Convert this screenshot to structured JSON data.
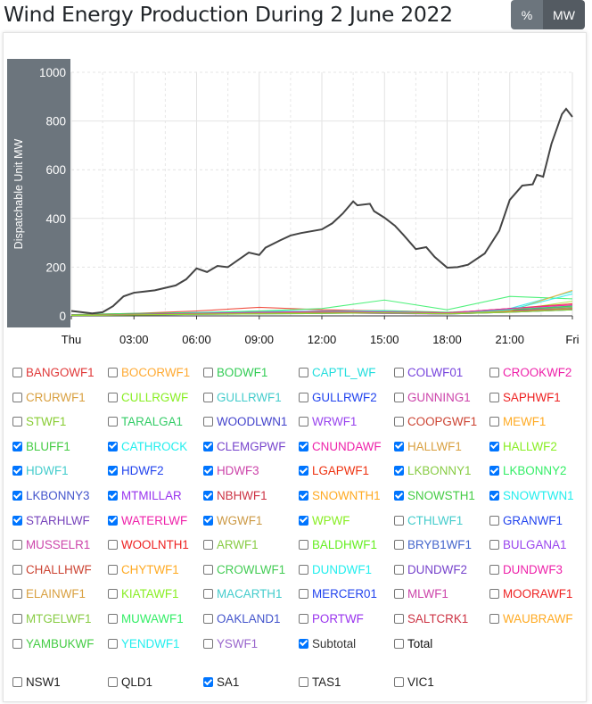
{
  "header": {
    "title": "Wind Energy Production During 2 June 2022",
    "buttons": [
      "%",
      "MW"
    ],
    "active": "MW"
  },
  "chart_data": {
    "type": "line",
    "ylabel": "Dispatchable Unit MW",
    "ylim": [
      0,
      1000
    ],
    "yticks": [
      "0",
      "200",
      "400",
      "600",
      "800",
      "1000"
    ],
    "xlabels": [
      "Thu",
      "03:00",
      "06:00",
      "09:00",
      "12:00",
      "15:00",
      "18:00",
      "21:00",
      "Fri"
    ],
    "xunit": "hours",
    "xlim": [
      0,
      24
    ],
    "grid": true,
    "subtotal": {
      "name": "Subtotal",
      "color": "#444444",
      "x": [
        0,
        0.5,
        1,
        1.5,
        2,
        2.5,
        3,
        3.5,
        4,
        4.5,
        5,
        5.5,
        6,
        6.5,
        7,
        7.5,
        8,
        8.5,
        9,
        9.3,
        10,
        10.5,
        11,
        12,
        12.5,
        13,
        13.5,
        13.7,
        14.3,
        14.5,
        15,
        15.5,
        15.9,
        16.5,
        17,
        17.4,
        18,
        18.5,
        19,
        19.8,
        20.5,
        21,
        21.6,
        22.1,
        22.3,
        22.6,
        23,
        23.5,
        23.7,
        24
      ],
      "y": [
        20,
        15,
        10,
        15,
        40,
        80,
        95,
        100,
        105,
        115,
        125,
        150,
        195,
        180,
        205,
        200,
        230,
        260,
        250,
        280,
        310,
        330,
        340,
        355,
        380,
        420,
        470,
        454,
        460,
        430,
        403,
        370,
        333,
        274,
        282,
        242,
        198,
        200,
        210,
        256,
        350,
        476,
        535,
        540,
        579,
        571,
        707,
        828,
        850,
        817
      ]
    },
    "units_x": [
      0,
      3,
      6,
      9,
      12,
      15,
      18,
      21,
      24
    ],
    "units": [
      {
        "name": "BLUFF1",
        "color": "#33cc66",
        "y": [
          5,
          8,
          10,
          12,
          20,
          22,
          15,
          25,
          40
        ]
      },
      {
        "name": "CATHROCK",
        "color": "#22e5e5",
        "y": [
          3,
          10,
          14,
          20,
          18,
          15,
          10,
          30,
          100
        ]
      },
      {
        "name": "CLEMGPWF",
        "color": "#7744dd",
        "y": [
          2,
          6,
          8,
          10,
          12,
          14,
          10,
          25,
          35
        ]
      },
      {
        "name": "CNUNDAWF",
        "color": "#ee22aa",
        "y": [
          4,
          8,
          10,
          12,
          15,
          14,
          12,
          30,
          45
        ]
      },
      {
        "name": "HALLWF1",
        "color": "#ddaa44",
        "y": [
          2,
          5,
          8,
          10,
          14,
          18,
          10,
          20,
          30
        ]
      },
      {
        "name": "HALLWF2",
        "color": "#99ee33",
        "y": [
          3,
          6,
          10,
          12,
          14,
          12,
          8,
          22,
          60
        ]
      },
      {
        "name": "HDWF1",
        "color": "#33ccdd",
        "y": [
          4,
          8,
          12,
          14,
          16,
          15,
          10,
          25,
          40
        ]
      },
      {
        "name": "HDWF2",
        "color": "#2244ee",
        "y": [
          3,
          6,
          8,
          12,
          14,
          12,
          8,
          20,
          30
        ]
      },
      {
        "name": "HDWF3",
        "color": "#cc44aa",
        "y": [
          2,
          5,
          8,
          10,
          12,
          10,
          8,
          18,
          28
        ]
      },
      {
        "name": "LGAPWF1",
        "color": "#ee3322",
        "y": [
          5,
          10,
          20,
          35,
          25,
          20,
          12,
          30,
          50
        ]
      },
      {
        "name": "LKBONNY1",
        "color": "#88cc44",
        "y": [
          2,
          5,
          8,
          12,
          14,
          16,
          10,
          20,
          35
        ]
      },
      {
        "name": "LKBONNY2",
        "color": "#33ee66",
        "y": [
          5,
          10,
          12,
          20,
          30,
          65,
          25,
          80,
          70
        ]
      },
      {
        "name": "LKBONNY3",
        "color": "#4455cc",
        "y": [
          2,
          4,
          6,
          8,
          10,
          12,
          8,
          15,
          25
        ]
      },
      {
        "name": "MTMILLAR",
        "color": "#9933ee",
        "y": [
          2,
          4,
          6,
          10,
          12,
          10,
          8,
          22,
          30
        ]
      },
      {
        "name": "NBHWF1",
        "color": "#cc3344",
        "y": [
          3,
          6,
          10,
          14,
          16,
          14,
          10,
          20,
          30
        ]
      },
      {
        "name": "SNOWNTH1",
        "color": "#ffaa22",
        "y": [
          2,
          5,
          8,
          12,
          18,
          20,
          10,
          20,
          105
        ]
      },
      {
        "name": "SNOWSTH1",
        "color": "#44cc44",
        "y": [
          3,
          6,
          10,
          14,
          18,
          16,
          12,
          25,
          40
        ]
      },
      {
        "name": "SNOWTWN1",
        "color": "#22eeee",
        "y": [
          2,
          5,
          10,
          15,
          20,
          20,
          10,
          25,
          90
        ]
      },
      {
        "name": "STARHLWF",
        "color": "#7744bb",
        "y": [
          2,
          5,
          8,
          10,
          12,
          12,
          8,
          15,
          25
        ]
      },
      {
        "name": "WATERLWF",
        "color": "#ee22aa",
        "y": [
          3,
          6,
          10,
          15,
          18,
          16,
          12,
          30,
          45
        ]
      },
      {
        "name": "WGWF1",
        "color": "#cc9944",
        "y": [
          2,
          4,
          8,
          10,
          14,
          12,
          10,
          18,
          30
        ]
      },
      {
        "name": "WPWF",
        "color": "#88ee22",
        "y": [
          2,
          4,
          6,
          8,
          10,
          12,
          8,
          15,
          25
        ]
      }
    ]
  },
  "legend": {
    "units": [
      {
        "label": "BANGOWF1",
        "color": "#e03838",
        "checked": false
      },
      {
        "label": "BOCORWF1",
        "color": "#ffaa33",
        "checked": false
      },
      {
        "label": "BODWF1",
        "color": "#33cc55",
        "checked": false
      },
      {
        "label": "CAPTL_WF",
        "color": "#22dddd",
        "checked": false
      },
      {
        "label": "COLWF01",
        "color": "#7744dd",
        "checked": false
      },
      {
        "label": "CROOKWF2",
        "color": "#ee22aa",
        "checked": false
      },
      {
        "label": "CRURWF1",
        "color": "#d9a040",
        "checked": false
      },
      {
        "label": "CULLRGWF",
        "color": "#88ee22",
        "checked": false
      },
      {
        "label": "GULLRWF1",
        "color": "#44cccc",
        "checked": false
      },
      {
        "label": "GULLRWF2",
        "color": "#2244ee",
        "checked": false
      },
      {
        "label": "GUNNING1",
        "color": "#cc44aa",
        "checked": false
      },
      {
        "label": "SAPHWF1",
        "color": "#ee2222",
        "checked": false
      },
      {
        "label": "STWF1",
        "color": "#88cc33",
        "checked": false
      },
      {
        "label": "TARALGA1",
        "color": "#33cc66",
        "checked": false
      },
      {
        "label": "WOODLWN1",
        "color": "#4444cc",
        "checked": false
      },
      {
        "label": "WRWF1",
        "color": "#9944ee",
        "checked": false
      },
      {
        "label": "COOPGWF1",
        "color": "#cc4433",
        "checked": false
      },
      {
        "label": "MEWF1",
        "color": "#ffaa22",
        "checked": false
      },
      {
        "label": "BLUFF1",
        "color": "#44cc44",
        "checked": true
      },
      {
        "label": "CATHROCK",
        "color": "#22eeee",
        "checked": true
      },
      {
        "label": "CLEMGPWF",
        "color": "#7744cc",
        "checked": true
      },
      {
        "label": "CNUNDAWF",
        "color": "#ee22aa",
        "checked": true
      },
      {
        "label": "HALLWF1",
        "color": "#d9a040",
        "checked": true
      },
      {
        "label": "HALLWF2",
        "color": "#88ee22",
        "checked": true
      },
      {
        "label": "HDWF1",
        "color": "#44cccc",
        "checked": true
      },
      {
        "label": "HDWF2",
        "color": "#2244ee",
        "checked": true
      },
      {
        "label": "HDWF3",
        "color": "#cc44aa",
        "checked": true
      },
      {
        "label": "LGAPWF1",
        "color": "#ee3311",
        "checked": true
      },
      {
        "label": "LKBONNY1",
        "color": "#88cc44",
        "checked": true
      },
      {
        "label": "LKBONNY2",
        "color": "#33ee66",
        "checked": true
      },
      {
        "label": "LKBONNY3",
        "color": "#4455cc",
        "checked": true
      },
      {
        "label": "MTMILLAR",
        "color": "#9933ee",
        "checked": true
      },
      {
        "label": "NBHWF1",
        "color": "#cc3344",
        "checked": true
      },
      {
        "label": "SNOWNTH1",
        "color": "#ffaa22",
        "checked": true
      },
      {
        "label": "SNOWSTH1",
        "color": "#44cc44",
        "checked": true
      },
      {
        "label": "SNOWTWN1",
        "color": "#22eeee",
        "checked": true
      },
      {
        "label": "STARHLWF",
        "color": "#7744bb",
        "checked": true
      },
      {
        "label": "WATERLWF",
        "color": "#ee22aa",
        "checked": true
      },
      {
        "label": "WGWF1",
        "color": "#cc9944",
        "checked": true
      },
      {
        "label": "WPWF",
        "color": "#88ee22",
        "checked": true
      },
      {
        "label": "CTHLWF1",
        "color": "#44cccc",
        "checked": false
      },
      {
        "label": "GRANWF1",
        "color": "#2244ee",
        "checked": false
      },
      {
        "label": "MUSSELR1",
        "color": "#cc44aa",
        "checked": false
      },
      {
        "label": "WOOLNTH1",
        "color": "#ee2222",
        "checked": false
      },
      {
        "label": "ARWF1",
        "color": "#88cc44",
        "checked": false
      },
      {
        "label": "BALDHWF1",
        "color": "#66ee22",
        "checked": false
      },
      {
        "label": "BRYB1WF1",
        "color": "#4466cc",
        "checked": false
      },
      {
        "label": "BULGANA1",
        "color": "#9944ee",
        "checked": false
      },
      {
        "label": "CHALLHWF",
        "color": "#cc4433",
        "checked": false
      },
      {
        "label": "CHYTWF1",
        "color": "#ffaa22",
        "checked": false
      },
      {
        "label": "CROWLWF1",
        "color": "#44cc55",
        "checked": false
      },
      {
        "label": "DUNDWF1",
        "color": "#22eeee",
        "checked": false
      },
      {
        "label": "DUNDWF2",
        "color": "#7744cc",
        "checked": false
      },
      {
        "label": "DUNDWF3",
        "color": "#ee22aa",
        "checked": false
      },
      {
        "label": "ELAINWF1",
        "color": "#d9a040",
        "checked": false
      },
      {
        "label": "KIATAWF1",
        "color": "#88ee22",
        "checked": false
      },
      {
        "label": "MACARTH1",
        "color": "#44cccc",
        "checked": false
      },
      {
        "label": "MERCER01",
        "color": "#2244ee",
        "checked": false
      },
      {
        "label": "MLWF1",
        "color": "#cc44aa",
        "checked": false
      },
      {
        "label": "MOORAWF1",
        "color": "#ee2222",
        "checked": false
      },
      {
        "label": "MTGELWF1",
        "color": "#88cc44",
        "checked": false
      },
      {
        "label": "MUWAWF1",
        "color": "#33ee66",
        "checked": false
      },
      {
        "label": "OAKLAND1",
        "color": "#4455cc",
        "checked": false
      },
      {
        "label": "PORTWF",
        "color": "#9933ee",
        "checked": false
      },
      {
        "label": "SALTCRK1",
        "color": "#cc3344",
        "checked": false
      },
      {
        "label": "WAUBRAWF",
        "color": "#ffaa22",
        "checked": false
      },
      {
        "label": "YAMBUKWF",
        "color": "#44cc44",
        "checked": false
      },
      {
        "label": "YENDWF1",
        "color": "#22eeee",
        "checked": false
      },
      {
        "label": "YSWF1",
        "color": "#9966cc",
        "checked": false
      },
      {
        "label": "Subtotal",
        "color": "#333333",
        "checked": true
      },
      {
        "label": "Total",
        "color": "#111111",
        "checked": false
      }
    ],
    "regions": [
      {
        "label": "NSW1",
        "checked": false
      },
      {
        "label": "QLD1",
        "checked": false
      },
      {
        "label": "SA1",
        "checked": true
      },
      {
        "label": "TAS1",
        "checked": false
      },
      {
        "label": "VIC1",
        "checked": false
      }
    ]
  }
}
